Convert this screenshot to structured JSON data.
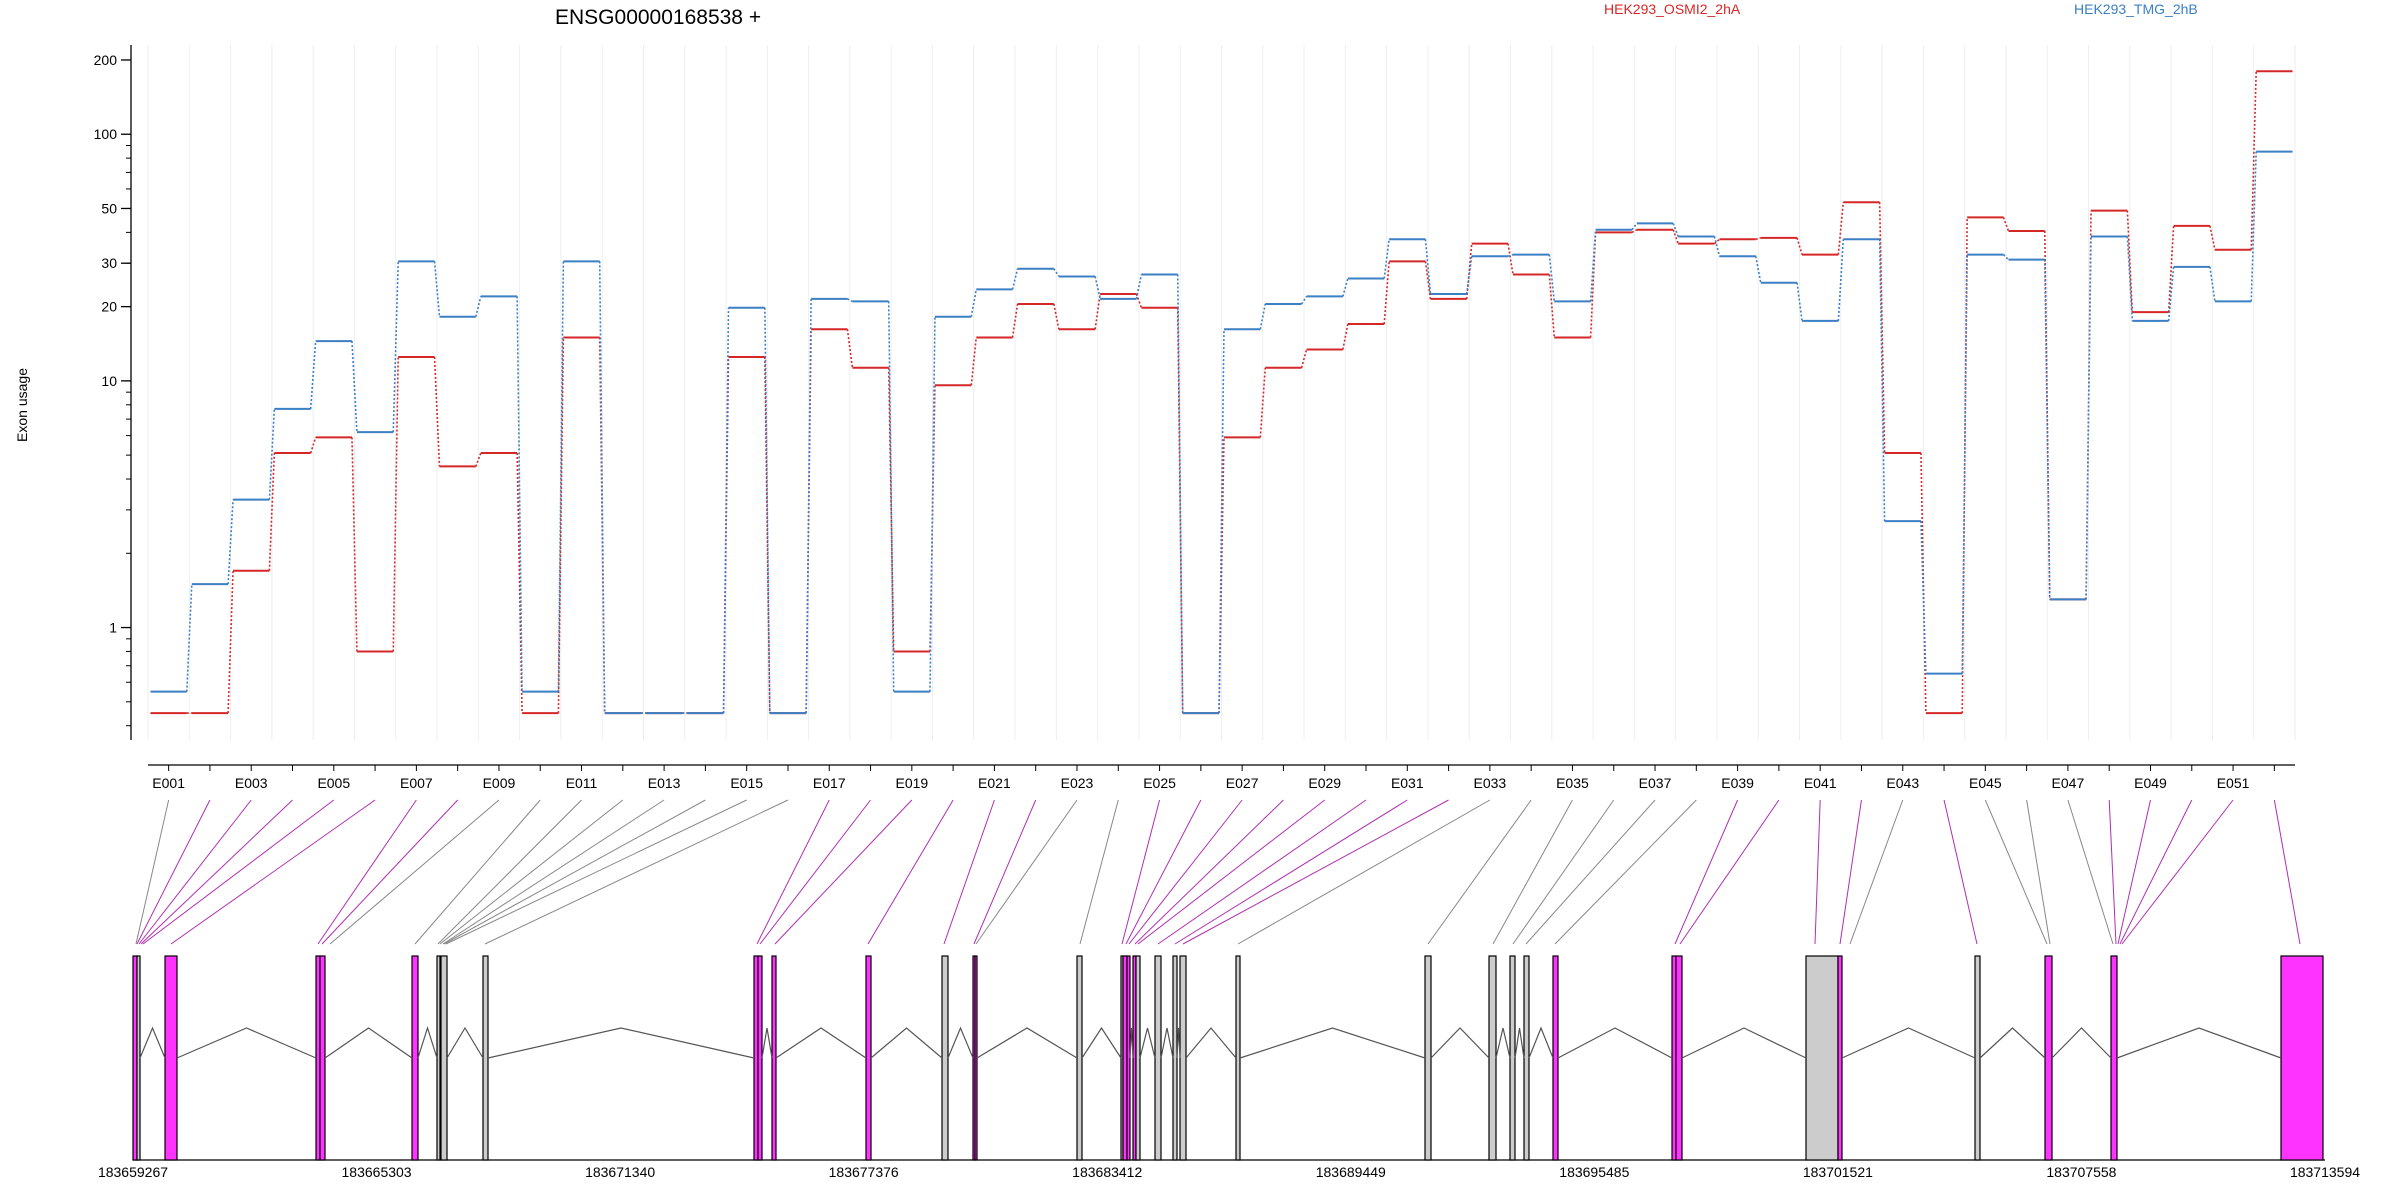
{
  "title": "ENSG00000168538 +",
  "ylabel": "Exon usage",
  "colors": {
    "HEK293_OSMI2_2hA": "#d62728",
    "HEK293_TMG_2hB": "#3b7fc4",
    "highlight_exon": "#ff33ff",
    "normal_exon": "#cccccc",
    "normal_link": "#888888",
    "highlight_link": "#b030b0"
  },
  "chart_data": {
    "type": "line",
    "scale": "log",
    "ylim": [
      0.35,
      230
    ],
    "yticks": [
      1,
      10,
      20,
      30,
      50,
      100,
      200
    ],
    "ytick_labels": [
      "1",
      "10",
      "20",
      "30",
      "50",
      "100",
      "200"
    ],
    "x_labels": [
      "E001",
      "E003",
      "E005",
      "E007",
      "E009",
      "E011",
      "E013",
      "E015",
      "E017",
      "E019",
      "E021",
      "E023",
      "E025",
      "E027",
      "E029",
      "E031",
      "E033",
      "E035",
      "E037",
      "E039",
      "E041",
      "E043",
      "E045",
      "E047",
      "E049",
      "E051"
    ],
    "exons": [
      "E001",
      "E002",
      "E003",
      "E004",
      "E005",
      "E006",
      "E007",
      "E008",
      "E009",
      "E010",
      "E011",
      "E012",
      "E013",
      "E014",
      "E015",
      "E016",
      "E017",
      "E018",
      "E019",
      "E020",
      "E021",
      "E022",
      "E023",
      "E024",
      "E025",
      "E026",
      "E027",
      "E028",
      "E029",
      "E030",
      "E031",
      "E032",
      "E033",
      "E034",
      "E035",
      "E036",
      "E037",
      "E038",
      "E039",
      "E040",
      "E041",
      "E042",
      "E043",
      "E044",
      "E045",
      "E046",
      "E047",
      "E048",
      "E049",
      "E050",
      "E051",
      "E052"
    ],
    "series": [
      {
        "name": "HEK293_OSMI2_2hA",
        "values": [
          0.45,
          0.45,
          1.7,
          5.1,
          5.9,
          0.8,
          12.5,
          4.5,
          5.1,
          0.45,
          15.0,
          0.45,
          0.45,
          0.45,
          12.5,
          0.45,
          16.2,
          11.3,
          0.8,
          9.6,
          15.0,
          20.5,
          16.2,
          22.5,
          19.8,
          0.45,
          5.9,
          11.3,
          13.4,
          17.0,
          30.5,
          21.5,
          36.0,
          27.0,
          15.0,
          40.0,
          41.0,
          36.0,
          37.5,
          38.0,
          32.5,
          53.0,
          5.1,
          0.45,
          46.0,
          40.5,
          1.3,
          49.0,
          19.0,
          42.5,
          34.0,
          180.0
        ]
      },
      {
        "name": "HEK293_TMG_2hB",
        "values": [
          0.55,
          1.5,
          3.3,
          7.7,
          14.5,
          6.2,
          30.5,
          18.2,
          22.0,
          0.55,
          30.5,
          0.45,
          0.45,
          0.45,
          19.8,
          0.45,
          21.5,
          21.0,
          0.55,
          18.2,
          23.5,
          28.5,
          26.5,
          21.5,
          27.0,
          0.45,
          16.2,
          20.5,
          22.0,
          26.0,
          37.5,
          22.5,
          32.0,
          32.5,
          21.0,
          41.0,
          43.5,
          38.5,
          32.0,
          25.0,
          17.5,
          37.5,
          2.7,
          0.65,
          32.5,
          31.0,
          1.3,
          38.5,
          17.5,
          29.0,
          21.0,
          85.0
        ]
      }
    ]
  },
  "gene_model": {
    "coordinate_labels": [
      "183659267",
      "183665303",
      "183671340",
      "183677376",
      "183683412",
      "183689449",
      "183695485",
      "183701521",
      "183707558",
      "183713594"
    ],
    "highlighted_exons": [
      "E002",
      "E003",
      "E004",
      "E005",
      "E006",
      "E007",
      "E008",
      "E017",
      "E018",
      "E019",
      "E020",
      "E021",
      "E022",
      "E025",
      "E026",
      "E027",
      "E028",
      "E029",
      "E030",
      "E031",
      "E032",
      "E039",
      "E040",
      "E041",
      "E042",
      "E044",
      "E048",
      "E049",
      "E050",
      "E051",
      "E052"
    ]
  }
}
